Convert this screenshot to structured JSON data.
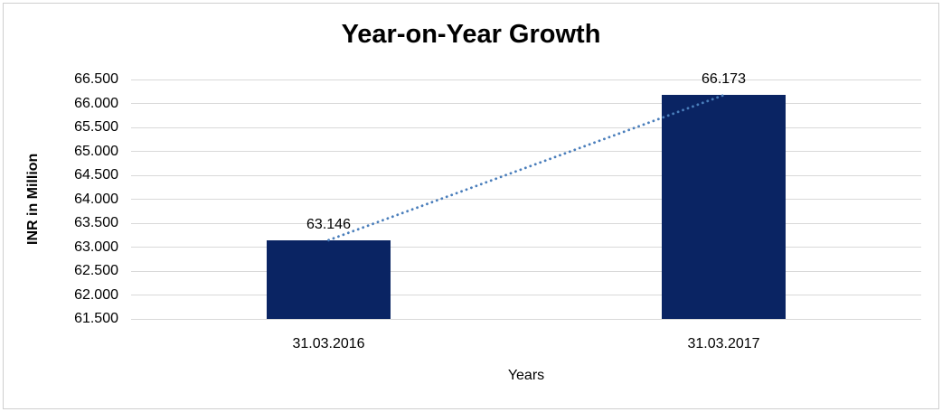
{
  "chart": {
    "title": "Year-on-Year Growth",
    "y_axis_title": "INR in Million",
    "x_axis_title": "Years"
  },
  "chart_data": {
    "type": "bar",
    "title": "Year-on-Year Growth",
    "categories": [
      "31.03.2016",
      "31.03.2017"
    ],
    "values": [
      63.146,
      66.173
    ],
    "data_labels": [
      "63.146",
      "66.173"
    ],
    "xlabel": "Years",
    "ylabel": "INR in Million",
    "ylim": [
      61.5,
      66.5
    ],
    "ytick_step": 0.5,
    "ytick_labels": [
      "61.500",
      "62.000",
      "62.500",
      "63.000",
      "63.500",
      "64.000",
      "64.500",
      "65.000",
      "65.500",
      "66.000",
      "66.500"
    ],
    "grid": true,
    "legend": "none",
    "trendline": {
      "style": "dotted",
      "color": "#4a7ebb",
      "from_value": 63.146,
      "to_value": 66.173
    },
    "colors": {
      "bar": "#0a2463",
      "gridline": "#d9d9d9",
      "axis_line": "#d9d9d9",
      "background": "#ffffff",
      "border": "#cfcfcf",
      "text": "#000000"
    }
  }
}
